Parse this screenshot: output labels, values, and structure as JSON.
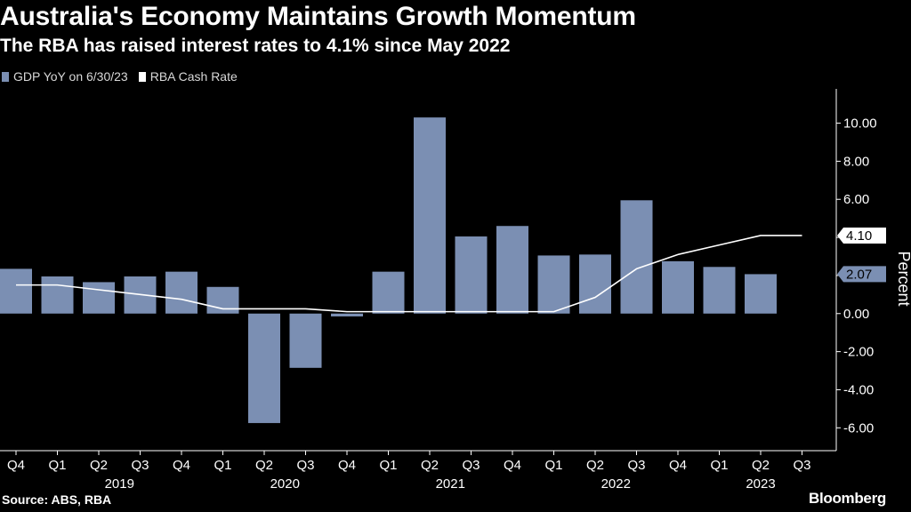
{
  "header": {
    "title": "Australia's Economy Maintains Growth Momentum",
    "subtitle": "The RBA has raised interest rates to 4.1% since May 2022"
  },
  "legend": [
    {
      "label": "GDP YoY on 6/30/23",
      "color": "#7b8fb3"
    },
    {
      "label": "RBA Cash Rate",
      "color": "#ffffff"
    }
  ],
  "footer": {
    "source": "Source: ABS, RBA",
    "brand": "Bloomberg"
  },
  "chart_data": {
    "type": "bar",
    "ylabel": "Percent",
    "ylim": [
      -7.2,
      11.8
    ],
    "yticks": [
      -6,
      -4,
      -2,
      0,
      2,
      4,
      6,
      8,
      10
    ],
    "ytick_labels": [
      "-6.00",
      "-4.00",
      "-2.00",
      "0.00",
      "2.00",
      "4.00",
      "6.00",
      "8.00",
      "10.00"
    ],
    "categories": [
      "Q4",
      "Q1",
      "Q2",
      "Q3",
      "Q4",
      "Q1",
      "Q2",
      "Q3",
      "Q4",
      "Q1",
      "Q2",
      "Q3",
      "Q4",
      "Q1",
      "Q2",
      "Q3",
      "Q4",
      "Q1",
      "Q2",
      "Q3"
    ],
    "year_labels": [
      {
        "label": "2019",
        "start": 1,
        "end": 4
      },
      {
        "label": "2020",
        "start": 5,
        "end": 8
      },
      {
        "label": "2021",
        "start": 9,
        "end": 12
      },
      {
        "label": "2022",
        "start": 13,
        "end": 16
      },
      {
        "label": "2023",
        "start": 17,
        "end": 19
      }
    ],
    "series": [
      {
        "name": "GDP YoY on 6/30/23",
        "type": "bar",
        "color": "#7b8fb3",
        "values": [
          2.35,
          1.95,
          1.65,
          1.95,
          2.2,
          1.4,
          -5.75,
          -2.85,
          -0.15,
          2.2,
          10.3,
          4.05,
          4.6,
          3.05,
          3.1,
          5.95,
          2.75,
          2.45,
          2.07,
          null
        ]
      },
      {
        "name": "RBA Cash Rate",
        "type": "line",
        "color": "#ffffff",
        "values": [
          1.5,
          1.5,
          1.25,
          1.0,
          0.75,
          0.25,
          0.25,
          0.25,
          0.1,
          0.1,
          0.1,
          0.1,
          0.1,
          0.1,
          0.85,
          2.35,
          3.1,
          3.6,
          4.1,
          4.1
        ]
      }
    ],
    "last_value_labels": [
      {
        "series": "RBA Cash Rate",
        "label": "4.10",
        "value": 4.1,
        "box_color": "#ffffff",
        "text_color": "#000000"
      },
      {
        "series": "GDP YoY on 6/30/23",
        "label": "2.07",
        "value": 2.07,
        "box_color": "#7b8fb3",
        "text_color": "#000000"
      }
    ]
  }
}
